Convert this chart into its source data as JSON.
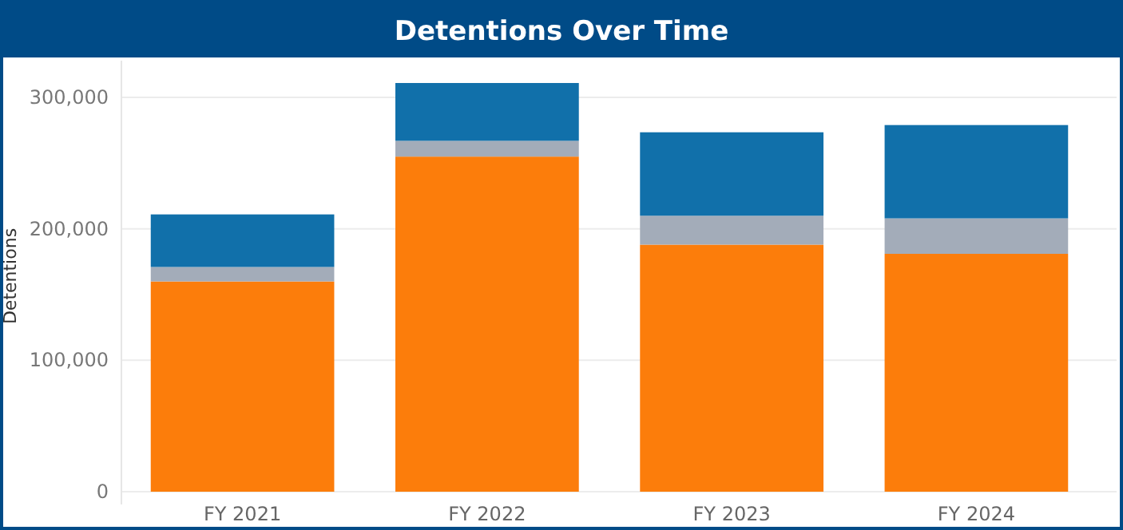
{
  "chart_data": {
    "type": "bar",
    "title": "Detentions Over Time",
    "ylabel": "Detentions",
    "categories": [
      "FY 2021",
      "FY 2022",
      "FY 2023",
      "FY 2024"
    ],
    "stacked": true,
    "series": [
      {
        "color": "#fc7d0b",
        "values": [
          160000,
          255000,
          188000,
          181000
        ]
      },
      {
        "color": "#a3acb9",
        "values": [
          11000,
          12000,
          22000,
          27000
        ]
      },
      {
        "color": "#1170aa",
        "values": [
          40000,
          44000,
          63500,
          71000
        ]
      }
    ],
    "ylim": [
      0,
      328000
    ],
    "yticks": [
      {
        "value": 0,
        "label": "0"
      },
      {
        "value": 100000,
        "label": "100,000"
      },
      {
        "value": 200000,
        "label": "200,000"
      },
      {
        "value": 300000,
        "label": "300,000"
      }
    ],
    "grid": "y"
  }
}
